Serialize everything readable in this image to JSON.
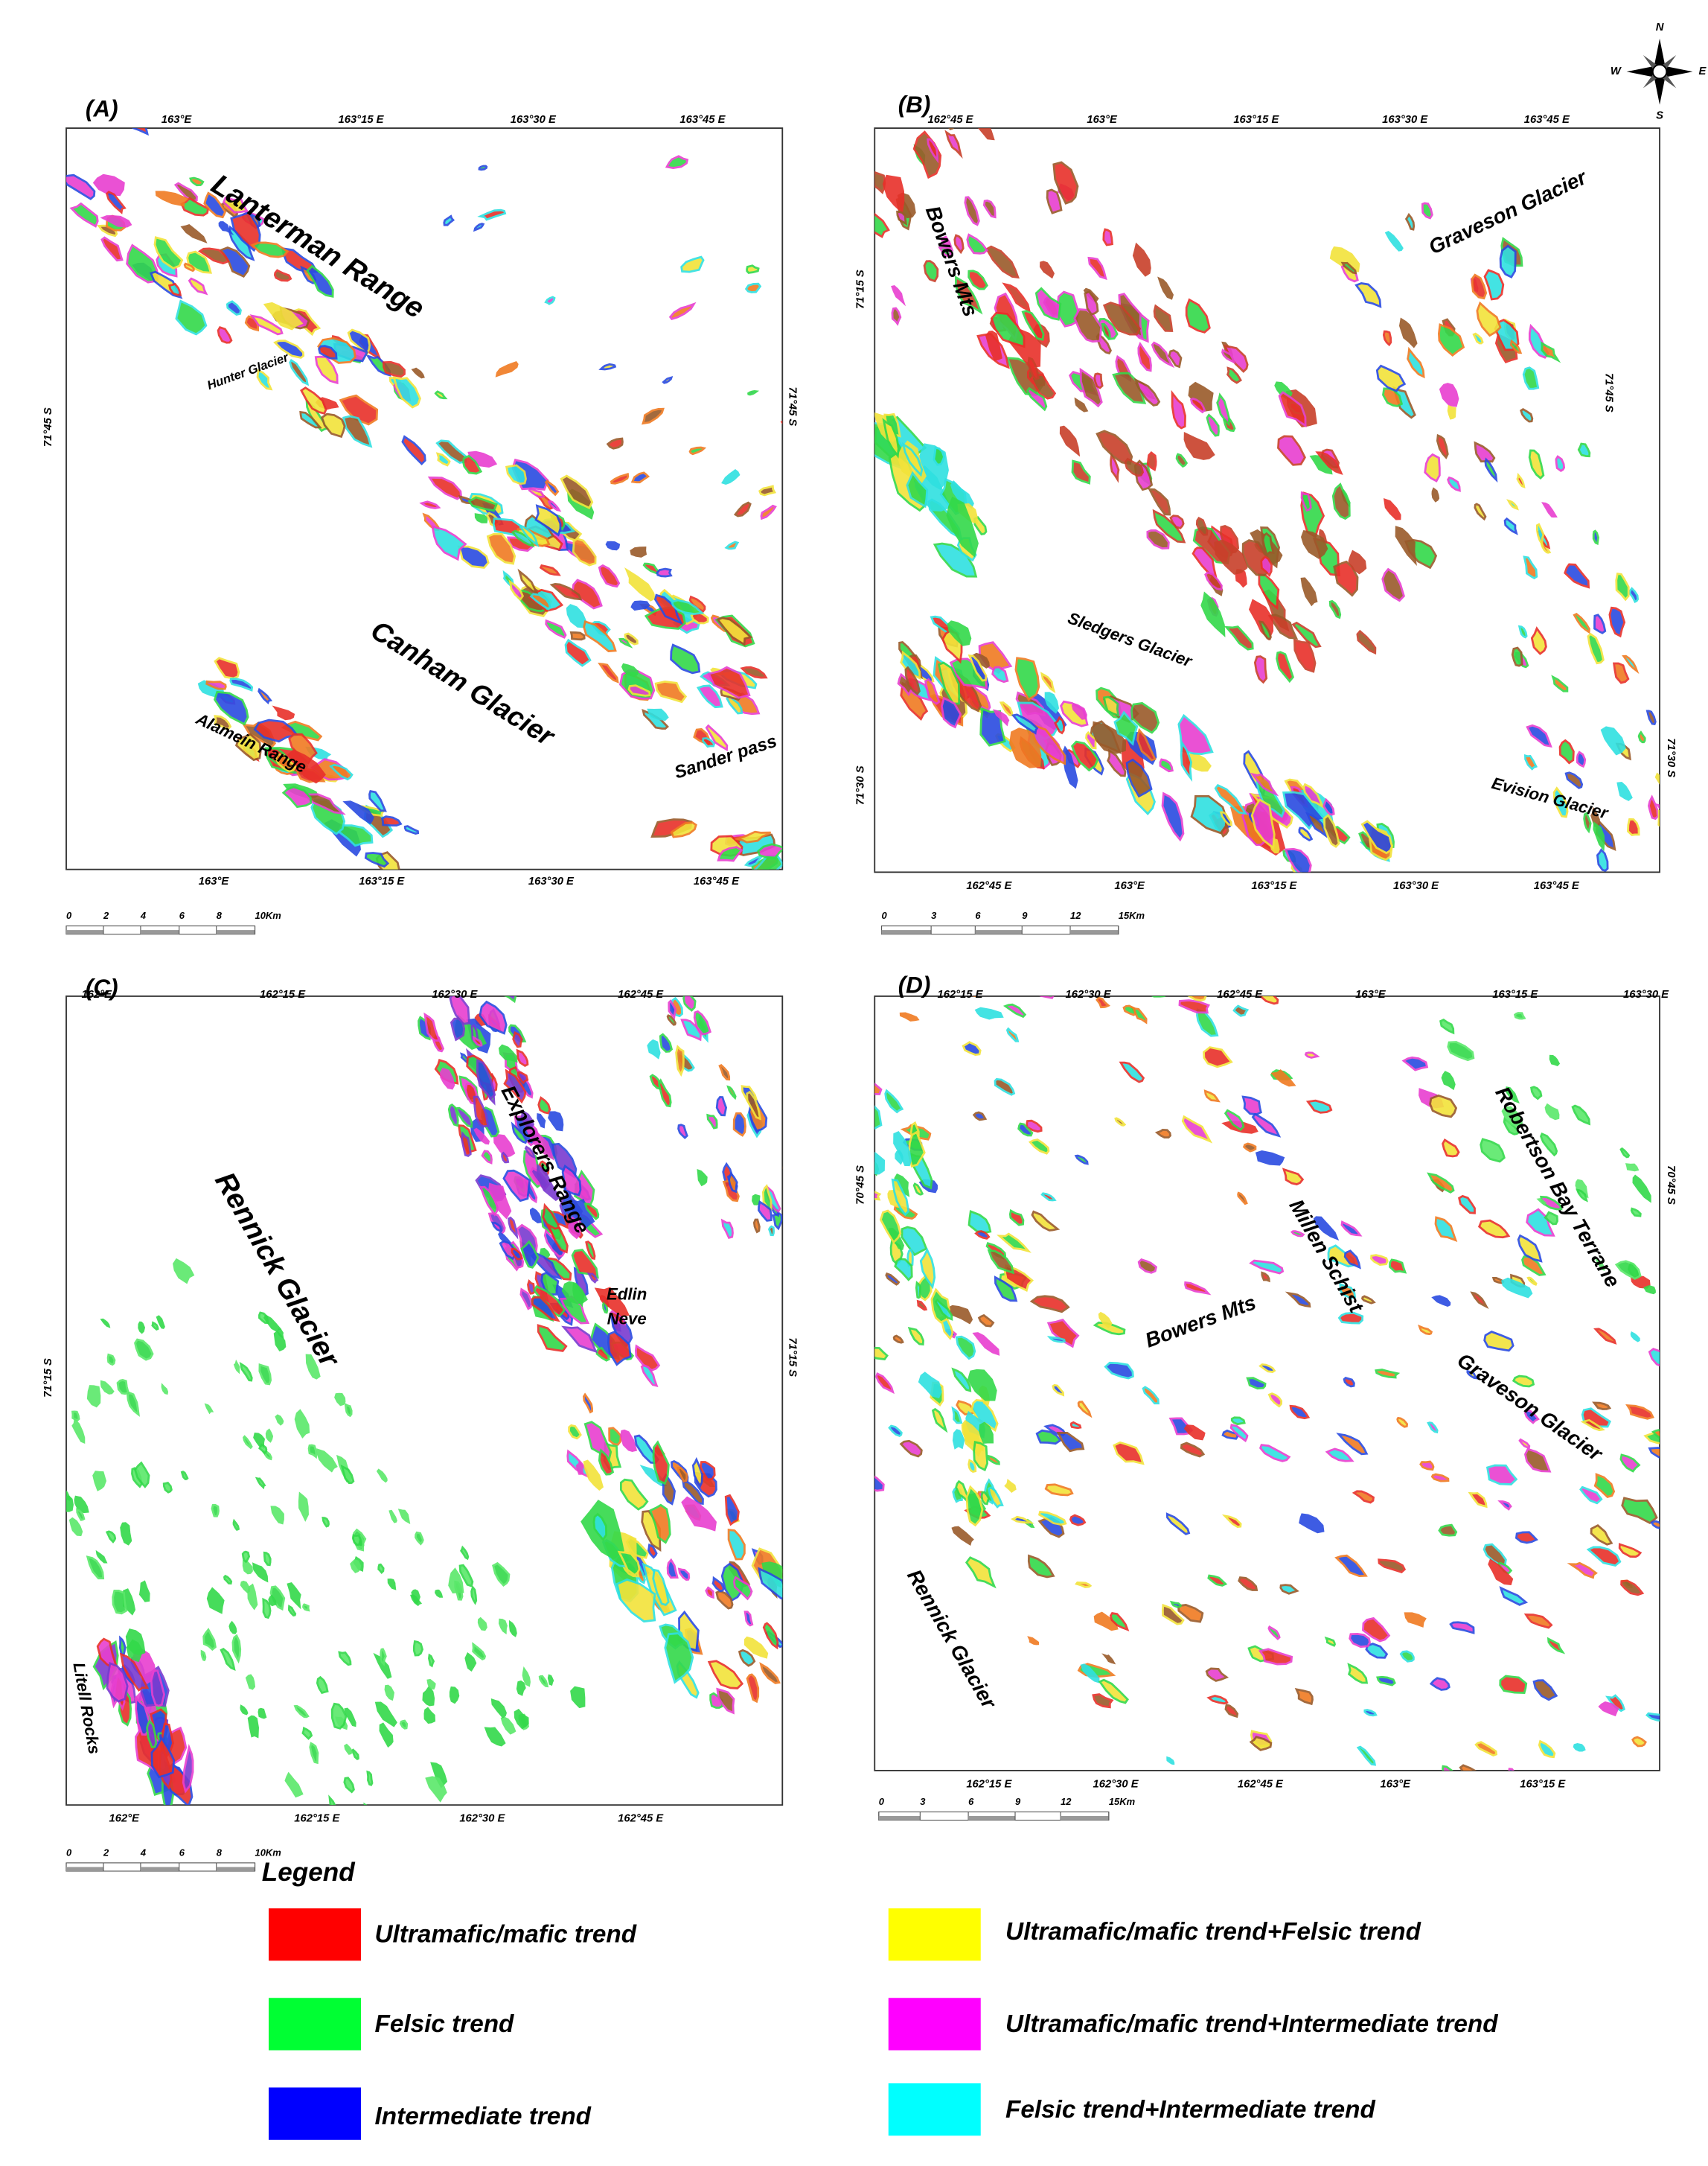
{
  "panels": [
    {
      "label": "(A)",
      "top_ticks": [
        "163°E",
        "163°15 E",
        "163°30 E",
        "163°45 E"
      ],
      "bottom_ticks": [
        "163°E",
        "163°15 E",
        "163°30 E",
        "163°45 E"
      ],
      "left_labels": [
        "71°45 S"
      ],
      "right_labels": [
        "71°45 S"
      ],
      "places": [
        "Lanterman Range",
        "Hunter Glacier",
        "Canham Glacier",
        "Alamein Range",
        "Sander pass"
      ],
      "scale": [
        "0",
        "2",
        "4",
        "6",
        "8",
        "10Km"
      ]
    },
    {
      "label": "(B)",
      "top_ticks": [
        "162°45 E",
        "163°E",
        "163°15 E",
        "163°30 E",
        "163°45 E"
      ],
      "bottom_ticks": [
        "162°45 E",
        "163°E",
        "163°15 E",
        "163°30 E",
        "163°45 E"
      ],
      "left_labels": [
        "71°15 S",
        "71°30 S"
      ],
      "right_labels": [
        "71°30 S",
        "71°45 S"
      ],
      "places": [
        "Bowers Mts",
        "Graveson Glacier",
        "Sledgers Glacier",
        "Evision Glacier"
      ],
      "scale": [
        "0",
        "3",
        "6",
        "9",
        "12",
        "15Km"
      ]
    },
    {
      "label": "(C)",
      "top_ticks": [
        "162°E",
        "162°15 E",
        "162°30 E",
        "162°45 E"
      ],
      "bottom_ticks": [
        "162°E",
        "162°15 E",
        "162°30 E",
        "162°45 E"
      ],
      "left_labels": [
        "71°15 S"
      ],
      "right_labels": [
        "71°15 S"
      ],
      "places": [
        "Rennick Glacier",
        "Explorers Range",
        "Edlin",
        "Neve",
        "Litell Rocks"
      ],
      "scale": [
        "0",
        "2",
        "4",
        "6",
        "8",
        "10Km"
      ]
    },
    {
      "label": "(D)",
      "top_ticks": [
        "162°15 E",
        "162°30 E",
        "162°45 E",
        "163°E",
        "163°15 E",
        "163°30 E"
      ],
      "bottom_ticks": [
        "162°15 E",
        "162°30 E",
        "162°45 E",
        "163°E",
        "163°15 E"
      ],
      "left_labels": [
        "70°45 S"
      ],
      "right_labels": [
        "70°45 S"
      ],
      "places": [
        "Robertson Bay Terrane",
        "Millen Schist",
        "Bowers Mts",
        "Graveson Glacier",
        "Rennick Glacier"
      ],
      "scale": [
        "0",
        "3",
        "6",
        "9",
        "12",
        "15Km"
      ]
    }
  ],
  "compass": {
    "n": "N",
    "w": "W",
    "e": "E",
    "s": "S"
  },
  "legend": {
    "title": "Legend",
    "items": [
      {
        "label": "Ultramafic/mafic trend",
        "color": "#ff0000"
      },
      {
        "label": "Felsic trend",
        "color": "#00ff33"
      },
      {
        "label": "Intermediate trend",
        "color": "#0000ff"
      },
      {
        "label": "Ultramafic/mafic trend+Felsic trend",
        "color": "#ffff00"
      },
      {
        "label": "Ultramafic/mafic trend+Intermediate trend",
        "color": "#ff00ff"
      },
      {
        "label": "Felsic trend+Intermediate trend",
        "color": "#00ffff"
      }
    ]
  }
}
